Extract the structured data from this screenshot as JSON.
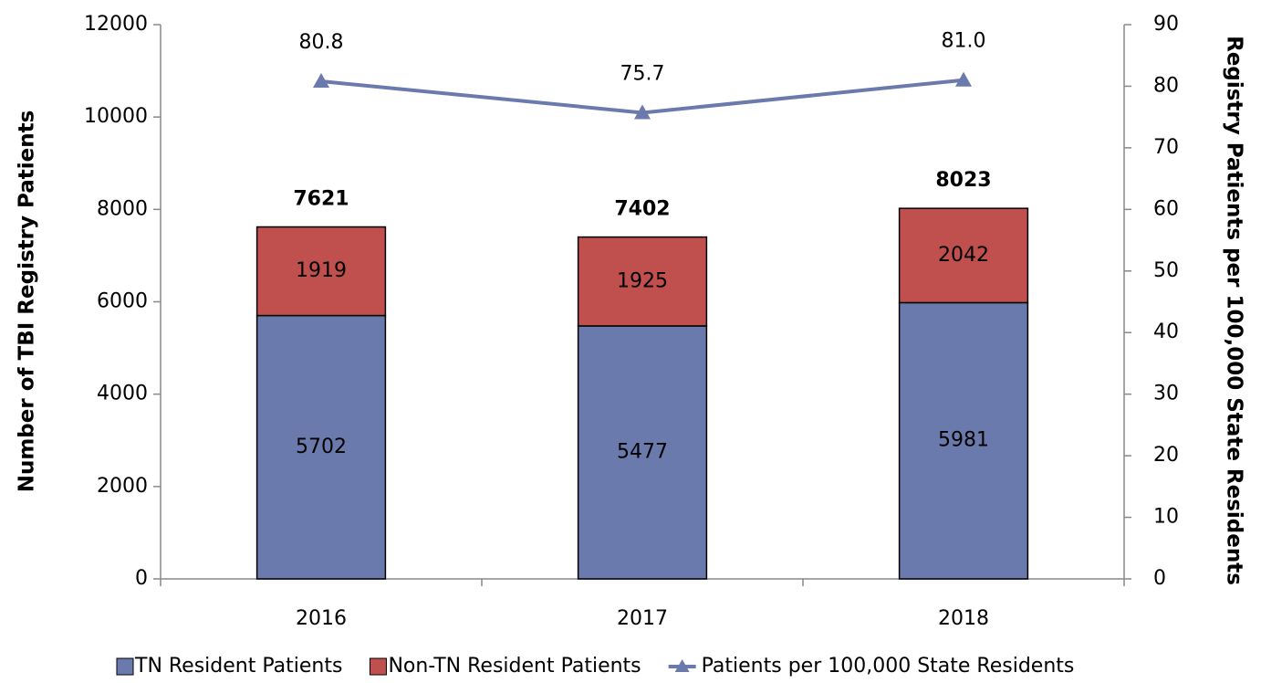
{
  "chart_data": {
    "type": "bar",
    "stacked": true,
    "categories": [
      "2016",
      "2017",
      "2018"
    ],
    "series": [
      {
        "name": "TN Resident Patients",
        "color": "#6b7aad",
        "values": [
          5702,
          5477,
          5981
        ]
      },
      {
        "name": "Non-TN Resident Patients",
        "color": "#c0504d",
        "values": [
          1919,
          1925,
          2042
        ]
      },
      {
        "name": "Patients per 100,000 State Residents",
        "type": "line",
        "axis": "y2",
        "color": "#6b7aad",
        "values": [
          80.8,
          75.7,
          81.0
        ],
        "value_labels": [
          "80.8",
          "75.7",
          "81.0"
        ]
      }
    ],
    "totals": [
      7621,
      7402,
      8023
    ],
    "ylabel": "Number of TBI Registry Patients",
    "y2label": "Registry Patients per 100,000 State Residents",
    "ylim": [
      0,
      12000
    ],
    "yticks": [
      0,
      2000,
      4000,
      6000,
      8000,
      10000,
      12000
    ],
    "y2lim": [
      0,
      90
    ],
    "y2ticks": [
      0,
      10,
      20,
      30,
      40,
      50,
      60,
      70,
      80,
      90
    ],
    "grid": false,
    "legend": "bottom"
  }
}
